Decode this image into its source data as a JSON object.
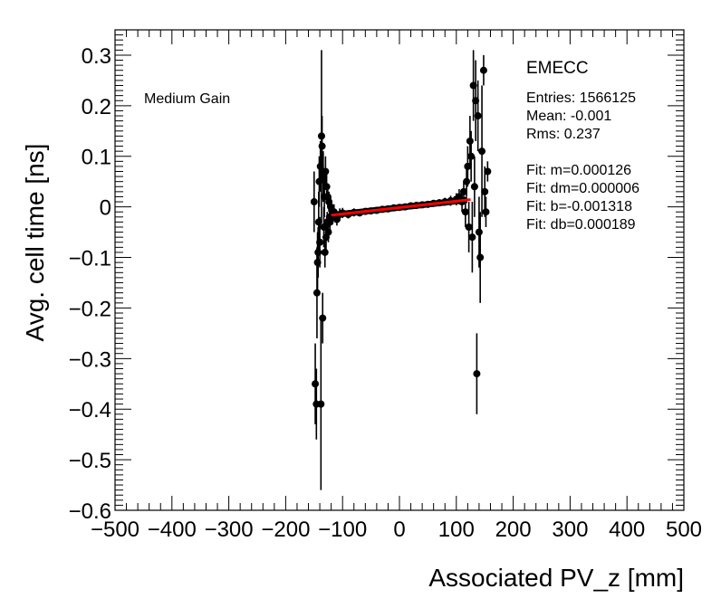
{
  "chart_data": {
    "type": "scatter",
    "xlabel": "Associated PV_z [mm]",
    "ylabel": "Avg. cell time [ns]",
    "xlim": [
      -500,
      500
    ],
    "ylim": [
      -0.6,
      0.35
    ],
    "x_ticks": [
      -500,
      -400,
      -300,
      -200,
      -100,
      0,
      100,
      200,
      300,
      400,
      500
    ],
    "y_ticks": [
      -0.6,
      -0.5,
      -0.4,
      -0.3,
      -0.2,
      -0.1,
      0,
      0.1,
      0.2,
      0.3
    ],
    "x_tick_labels": [
      "−500",
      "−400",
      "−300",
      "−200",
      "−100",
      "0",
      "100",
      "200",
      "300",
      "400",
      "500"
    ],
    "y_tick_labels": [
      "−0.6",
      "−0.5",
      "−0.4",
      "−0.3",
      "−0.2",
      "−0.1",
      "0",
      "0.1",
      "0.2",
      "0.3"
    ],
    "annotation": "Medium Gain",
    "stats": {
      "title": "EMECC",
      "lines": [
        "Entries: 1566125",
        "Mean: -0.001",
        "Rms: 0.237",
        "",
        "Fit: m=0.000126",
        "Fit: dm=0.000006",
        "Fit: b=-0.001318",
        "Fit: db=0.000189"
      ]
    },
    "fit": {
      "color": "#ff0000",
      "slope": 0.000126,
      "intercept": -0.001318,
      "x_range": [
        -120,
        125
      ]
    },
    "points": [
      {
        "x": -150,
        "y": 0.01,
        "err": 0.06
      },
      {
        "x": -148,
        "y": -0.35,
        "err": 0.08
      },
      {
        "x": -146,
        "y": -0.39,
        "err": 0.07
      },
      {
        "x": -145,
        "y": -0.17,
        "err": 0.09
      },
      {
        "x": -144,
        "y": -0.11,
        "err": 0.06
      },
      {
        "x": -143,
        "y": -0.09,
        "err": 0.05
      },
      {
        "x": -142,
        "y": -0.03,
        "err": 0.06
      },
      {
        "x": -141,
        "y": 0.05,
        "err": 0.05
      },
      {
        "x": -140,
        "y": -0.07,
        "err": 0.05
      },
      {
        "x": -139,
        "y": 0.08,
        "err": 0.05
      },
      {
        "x": -138,
        "y": -0.39,
        "err": 0.17
      },
      {
        "x": -137,
        "y": 0.14,
        "err": 0.17
      },
      {
        "x": -136,
        "y": 0.12,
        "err": 0.06
      },
      {
        "x": -135,
        "y": -0.22,
        "err": 0.05
      },
      {
        "x": -134,
        "y": 0.06,
        "err": 0.05
      },
      {
        "x": -133,
        "y": -0.04,
        "err": 0.04
      },
      {
        "x": -132,
        "y": 0.02,
        "err": 0.04
      },
      {
        "x": -131,
        "y": -0.09,
        "err": 0.03
      },
      {
        "x": -130,
        "y": 0.07,
        "err": 0.03
      },
      {
        "x": -129,
        "y": -0.06,
        "err": 0.03
      },
      {
        "x": -128,
        "y": 0.04,
        "err": 0.03
      },
      {
        "x": -127,
        "y": -0.03,
        "err": 0.02
      },
      {
        "x": -126,
        "y": 0.02,
        "err": 0.02
      },
      {
        "x": -125,
        "y": -0.05,
        "err": 0.02
      },
      {
        "x": -124,
        "y": 0.01,
        "err": 0.02
      },
      {
        "x": -123,
        "y": -0.02,
        "err": 0.02
      },
      {
        "x": -122,
        "y": -0.03,
        "err": 0.02
      },
      {
        "x": -121,
        "y": 0.0,
        "err": 0.02
      },
      {
        "x": -118,
        "y": -0.02,
        "err": 0.015
      },
      {
        "x": -115,
        "y": -0.01,
        "err": 0.015
      },
      {
        "x": -110,
        "y": -0.025,
        "err": 0.012
      },
      {
        "x": -105,
        "y": -0.015,
        "err": 0.012
      },
      {
        "x": -100,
        "y": -0.012,
        "err": 0.01
      },
      {
        "x": -90,
        "y": -0.015,
        "err": 0.008
      },
      {
        "x": -80,
        "y": -0.011,
        "err": 0.008
      },
      {
        "x": -70,
        "y": -0.012,
        "err": 0.006
      },
      {
        "x": -60,
        "y": -0.009,
        "err": 0.006
      },
      {
        "x": -50,
        "y": -0.008,
        "err": 0.005
      },
      {
        "x": -40,
        "y": -0.007,
        "err": 0.005
      },
      {
        "x": -30,
        "y": -0.005,
        "err": 0.005
      },
      {
        "x": -20,
        "y": -0.004,
        "err": 0.005
      },
      {
        "x": -10,
        "y": -0.002,
        "err": 0.005
      },
      {
        "x": 0,
        "y": -0.001,
        "err": 0.005
      },
      {
        "x": 10,
        "y": 0.0,
        "err": 0.005
      },
      {
        "x": 20,
        "y": 0.002,
        "err": 0.005
      },
      {
        "x": 30,
        "y": 0.003,
        "err": 0.005
      },
      {
        "x": 40,
        "y": 0.004,
        "err": 0.005
      },
      {
        "x": 50,
        "y": 0.005,
        "err": 0.006
      },
      {
        "x": 60,
        "y": 0.007,
        "err": 0.006
      },
      {
        "x": 70,
        "y": 0.008,
        "err": 0.007
      },
      {
        "x": 80,
        "y": 0.01,
        "err": 0.008
      },
      {
        "x": 90,
        "y": 0.012,
        "err": 0.01
      },
      {
        "x": 100,
        "y": 0.015,
        "err": 0.012
      },
      {
        "x": 105,
        "y": 0.02,
        "err": 0.015
      },
      {
        "x": 110,
        "y": 0.01,
        "err": 0.02
      },
      {
        "x": 113,
        "y": 0.03,
        "err": 0.02
      },
      {
        "x": 116,
        "y": -0.01,
        "err": 0.03
      },
      {
        "x": 118,
        "y": 0.05,
        "err": 0.03
      },
      {
        "x": 120,
        "y": 0.08,
        "err": 0.04
      },
      {
        "x": 122,
        "y": -0.04,
        "err": 0.05
      },
      {
        "x": 124,
        "y": 0.13,
        "err": 0.05
      },
      {
        "x": 126,
        "y": 0.1,
        "err": 0.05
      },
      {
        "x": 128,
        "y": -0.06,
        "err": 0.07
      },
      {
        "x": 130,
        "y": 0.24,
        "err": 0.07
      },
      {
        "x": 132,
        "y": 0.04,
        "err": 0.06
      },
      {
        "x": 134,
        "y": 0.21,
        "err": 0.08
      },
      {
        "x": 136,
        "y": -0.33,
        "err": 0.08
      },
      {
        "x": 138,
        "y": 0.18,
        "err": 0.07
      },
      {
        "x": 140,
        "y": -0.05,
        "err": 0.07
      },
      {
        "x": 142,
        "y": -0.1,
        "err": 0.09
      },
      {
        "x": 145,
        "y": 0.11,
        "err": 0.13
      },
      {
        "x": 148,
        "y": 0.27,
        "err": 0.03
      },
      {
        "x": 150,
        "y": 0.03,
        "err": 0.05
      },
      {
        "x": 152,
        "y": -0.01,
        "err": 0.03
      },
      {
        "x": 155,
        "y": 0.07,
        "err": 0.02
      }
    ]
  }
}
